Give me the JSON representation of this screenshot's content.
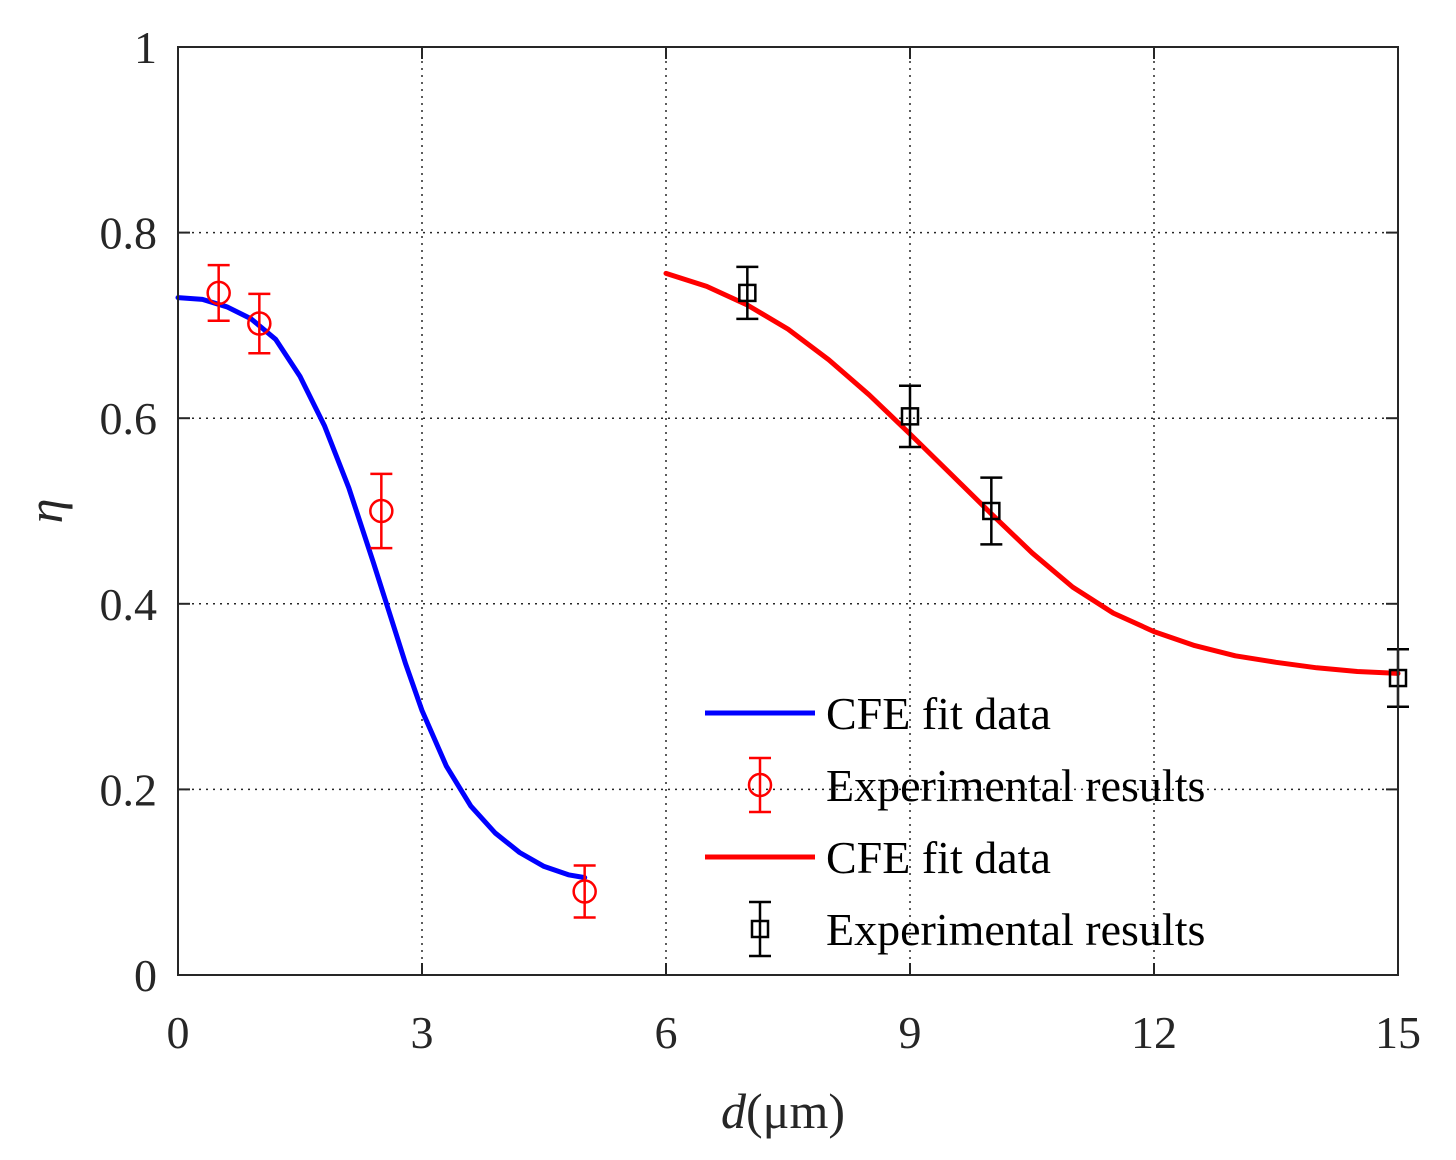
{
  "chart_data": {
    "type": "line",
    "title": "",
    "xlabel_italic": "d",
    "xlabel_rest": "(μm)",
    "ylabel": "η",
    "xlim": [
      0,
      15
    ],
    "ylim": [
      0,
      1
    ],
    "xticks": [
      0,
      3,
      6,
      9,
      12,
      15
    ],
    "xtick_labels": [
      "0",
      "3",
      "6",
      "9",
      "12",
      "15"
    ],
    "yticks": [
      0,
      0.2,
      0.4,
      0.6,
      0.8,
      1
    ],
    "ytick_labels": [
      "0",
      "0.2",
      "0.4",
      "0.6",
      "0.8",
      "1"
    ],
    "grid": true,
    "legend_position": "bottom-right",
    "series": [
      {
        "name": "CFE fit data",
        "kind": "line",
        "color": "#0000ff",
        "x": [
          0,
          0.3,
          0.6,
          0.9,
          1.2,
          1.5,
          1.8,
          2.1,
          2.4,
          2.6,
          2.8,
          3.0,
          3.3,
          3.6,
          3.9,
          4.2,
          4.5,
          4.8,
          5.0
        ],
        "y": [
          0.73,
          0.728,
          0.72,
          0.707,
          0.685,
          0.645,
          0.592,
          0.525,
          0.445,
          0.39,
          0.335,
          0.285,
          0.225,
          0.182,
          0.153,
          0.132,
          0.117,
          0.108,
          0.105
        ]
      },
      {
        "name": "Experimental results",
        "kind": "errorbar",
        "marker": "circle",
        "color": "#ff0000",
        "x": [
          0.5,
          1.0,
          2.5,
          5.0
        ],
        "y": [
          0.735,
          0.702,
          0.5,
          0.09
        ],
        "err": [
          0.03,
          0.032,
          0.04,
          0.028
        ]
      },
      {
        "name": "CFE fit data",
        "kind": "line",
        "color": "#ff0000",
        "x": [
          6.0,
          6.5,
          7.0,
          7.5,
          8.0,
          8.5,
          9.0,
          9.5,
          10.0,
          10.5,
          11.0,
          11.5,
          12.0,
          12.5,
          13.0,
          13.5,
          14.0,
          14.5,
          15.0
        ],
        "y": [
          0.756,
          0.742,
          0.722,
          0.696,
          0.663,
          0.625,
          0.583,
          0.54,
          0.497,
          0.455,
          0.418,
          0.39,
          0.37,
          0.355,
          0.344,
          0.337,
          0.331,
          0.327,
          0.325
        ]
      },
      {
        "name": "Experimental results",
        "kind": "errorbar",
        "marker": "square",
        "color": "#000000",
        "x": [
          7.0,
          9.0,
          10.0,
          15.0
        ],
        "y": [
          0.735,
          0.602,
          0.5,
          0.32
        ],
        "err": [
          0.028,
          0.033,
          0.036,
          0.031
        ]
      }
    ]
  }
}
